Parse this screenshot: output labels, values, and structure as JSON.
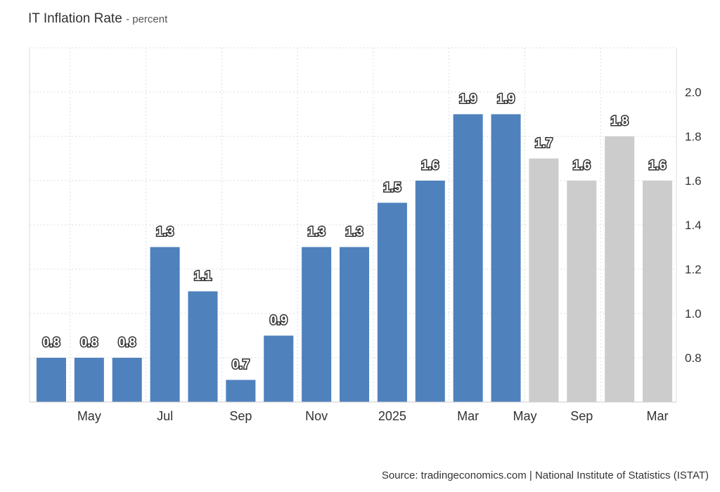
{
  "header": {
    "title": "IT Inflation Rate",
    "subtitle": "- percent"
  },
  "footer": {
    "source": "Source: tradingeconomics.com | National Institute of Statistics (ISTAT)"
  },
  "colors": {
    "actual": "#4f81bd",
    "forecast": "#cccccc",
    "grid": "#dddddd"
  },
  "chart_data": {
    "type": "bar",
    "title": "IT Inflation Rate",
    "ylabel": "percent",
    "ylim": [
      0.6,
      2.2
    ],
    "y_ticks": [
      0.8,
      1.0,
      1.2,
      1.4,
      1.6,
      1.8,
      2.0
    ],
    "y_tick_labels": [
      "0.8",
      "1.0",
      "1.2",
      "1.4",
      "1.6",
      "1.8",
      "2.0"
    ],
    "grid": true,
    "value_labels": true,
    "series": [
      {
        "values": [
          0.8,
          0.8,
          0.8,
          1.3,
          1.1,
          0.7,
          0.9,
          1.3,
          1.3,
          1.5,
          1.6,
          1.9,
          1.9
        ],
        "color": "#4f81bd"
      },
      {
        "values": [
          1.7,
          1.6,
          1.8,
          1.6
        ],
        "color": "#cccccc"
      }
    ],
    "x_tick_labels": [
      {
        "bar": 1,
        "label": "May"
      },
      {
        "bar": 3,
        "label": "Jul"
      },
      {
        "bar": 5,
        "label": "Sep"
      },
      {
        "bar": 7,
        "label": "Nov"
      },
      {
        "bar": 9,
        "label": "2025"
      },
      {
        "bar": 11,
        "label": "Mar"
      },
      {
        "bar": 12.5,
        "label": "May"
      },
      {
        "bar": 14,
        "label": "Sep"
      },
      {
        "bar": 16,
        "label": "Mar"
      }
    ]
  }
}
